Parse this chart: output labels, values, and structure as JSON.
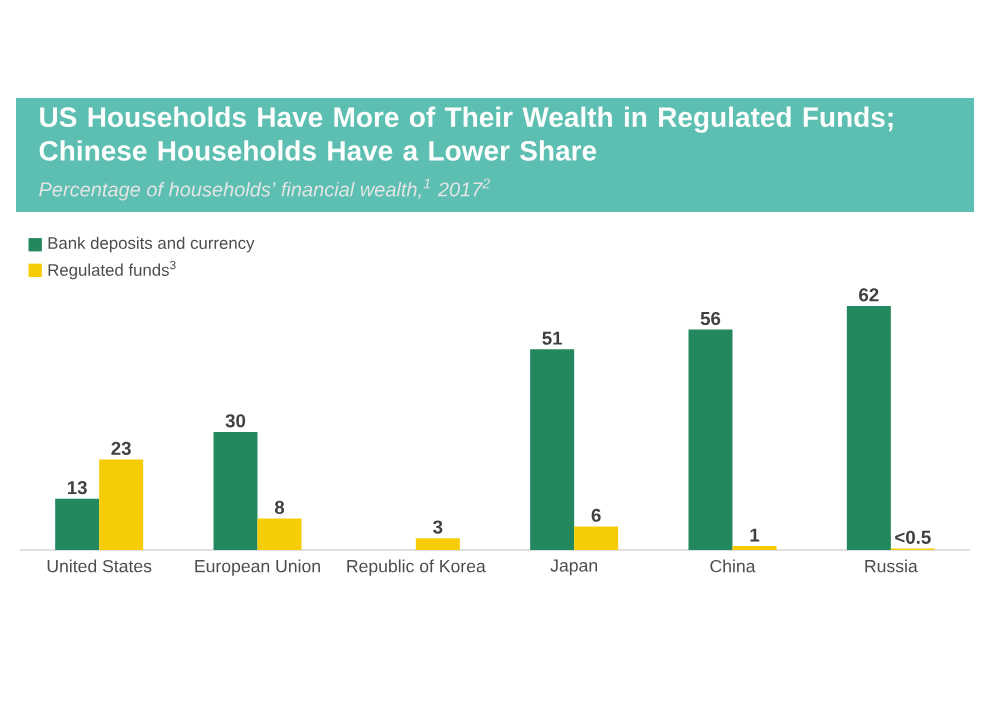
{
  "chart_data": {
    "type": "bar",
    "title": "US Households Have More of Their Wealth in Regulated Funds; Chinese Households Have a Lower Share",
    "subtitle": "Percentage of households’ financial wealth,$^{1}$ 2017$^{2}$",
    "categories": [
      "United States",
      "European Union",
      "Republic of Korea",
      "Japan",
      "China",
      "Russia"
    ],
    "series": [
      {
        "name": "Bank deposits and currency",
        "color": "#23885e",
        "values": [
          13,
          30,
          null,
          51,
          56,
          62
        ],
        "value_labels": [
          "13",
          "30",
          null,
          "51",
          "56",
          "62"
        ]
      },
      {
        "name": "Regulated funds$^{3}$",
        "color": "#f6cd05",
        "values": [
          23,
          8,
          3,
          6,
          1,
          0.4
        ],
        "value_labels": [
          "23",
          "8",
          "3",
          "6",
          "1",
          "<0.5"
        ]
      }
    ],
    "legend": "top left"
  }
}
